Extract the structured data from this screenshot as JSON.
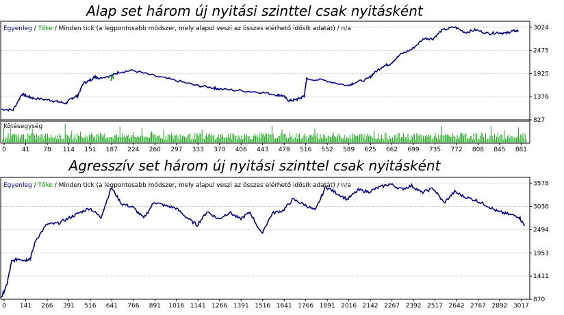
{
  "titles": {
    "top": "Alap set három új nyitási szinttel csak nyitásként",
    "bottom": "Agresszív set három új nyitási szinttel csak nyitásként"
  },
  "legend": {
    "balance": "Egyenleg",
    "sep1": " / ",
    "equity": "Tőke",
    "rest": " / Minden tick (a legpontosabb módszer, mely alapul veszi az összes elérhető idősík adatát) / n/a"
  },
  "volume_label": "Kötésegység",
  "colors": {
    "balance": "#00008b",
    "equity": "#00a000",
    "volume": "#00a000",
    "grid": "#c8c8c8"
  },
  "chart_data": [
    {
      "type": "line",
      "title": "Alap set három új nyitási szinttel csak nyitásként",
      "y_ticks": [
        1376,
        1925,
        2475,
        3024
      ],
      "x_ticks": [
        0,
        41,
        78,
        114,
        151,
        187,
        224,
        260,
        297,
        333,
        370,
        406,
        443,
        479,
        516,
        552,
        589,
        625,
        662,
        699,
        735,
        772,
        808,
        845,
        881
      ],
      "volume_y_tick": 827,
      "ylim": [
        827,
        3150
      ],
      "xlim": [
        0,
        900
      ],
      "series": [
        {
          "x": [
            0,
            20,
            35,
            45,
            55,
            80,
            95,
            110,
            120,
            130,
            140,
            151,
            160,
            165,
            187,
            200,
            224,
            260,
            297,
            333,
            360,
            370,
            406,
            443,
            470,
            479,
            490,
            500,
            510,
            516,
            520,
            552,
            589,
            600,
            625,
            635,
            650,
            662,
            680,
            699,
            720,
            735,
            750,
            772,
            790,
            808,
            830,
            845,
            860,
            870,
            881
          ],
          "values": [
            1080,
            1060,
            1440,
            1380,
            1340,
            1300,
            1260,
            1220,
            1340,
            1400,
            1700,
            1760,
            1860,
            1820,
            1870,
            1960,
            2000,
            1870,
            1760,
            1640,
            1590,
            1560,
            1520,
            1480,
            1420,
            1400,
            1280,
            1300,
            1350,
            1400,
            1800,
            1760,
            1640,
            1700,
            1800,
            1940,
            2100,
            2150,
            2380,
            2500,
            2760,
            2750,
            2950,
            3030,
            2900,
            2960,
            2870,
            2900,
            2880,
            2930,
            2940
          ]
        }
      ]
    },
    {
      "type": "line",
      "title": "Agresszív set három új nyitási szinttel csak nyitásként",
      "y_ticks": [
        870,
        1411,
        1953,
        2494,
        3036,
        3578
      ],
      "x_ticks": [
        0,
        141,
        266,
        391,
        516,
        641,
        766,
        891,
        1016,
        1141,
        1266,
        1391,
        1516,
        1641,
        1766,
        1891,
        2016,
        2142,
        2267,
        2392,
        2517,
        2642,
        2767,
        2892,
        3017
      ],
      "ylim": [
        870,
        3700
      ],
      "xlim": [
        0,
        3080
      ],
      "series": [
        {
          "x": [
            0,
            30,
            60,
            100,
            141,
            170,
            200,
            266,
            330,
            391,
            450,
            516,
            580,
            641,
            700,
            766,
            830,
            891,
            950,
            1016,
            1080,
            1141,
            1200,
            1266,
            1330,
            1391,
            1450,
            1516,
            1580,
            1641,
            1700,
            1766,
            1830,
            1891,
            1950,
            2016,
            2080,
            2142,
            2200,
            2267,
            2330,
            2392,
            2450,
            2517,
            2580,
            2642,
            2700,
            2767,
            2830,
            2892,
            2950,
            3017,
            3050
          ],
          "values": [
            920,
            1180,
            1750,
            1820,
            1780,
            1830,
            2250,
            2620,
            2640,
            2760,
            2880,
            3000,
            2780,
            3480,
            3100,
            3020,
            2760,
            3140,
            3060,
            3000,
            2780,
            2600,
            2920,
            2740,
            2900,
            2740,
            2900,
            2400,
            2880,
            2940,
            3200,
            3080,
            2940,
            3500,
            3360,
            3200,
            3420,
            3380,
            3480,
            3560,
            3440,
            3520,
            3360,
            3460,
            3120,
            3380,
            3260,
            3180,
            3060,
            2920,
            2860,
            2800,
            2580
          ]
        }
      ]
    }
  ]
}
